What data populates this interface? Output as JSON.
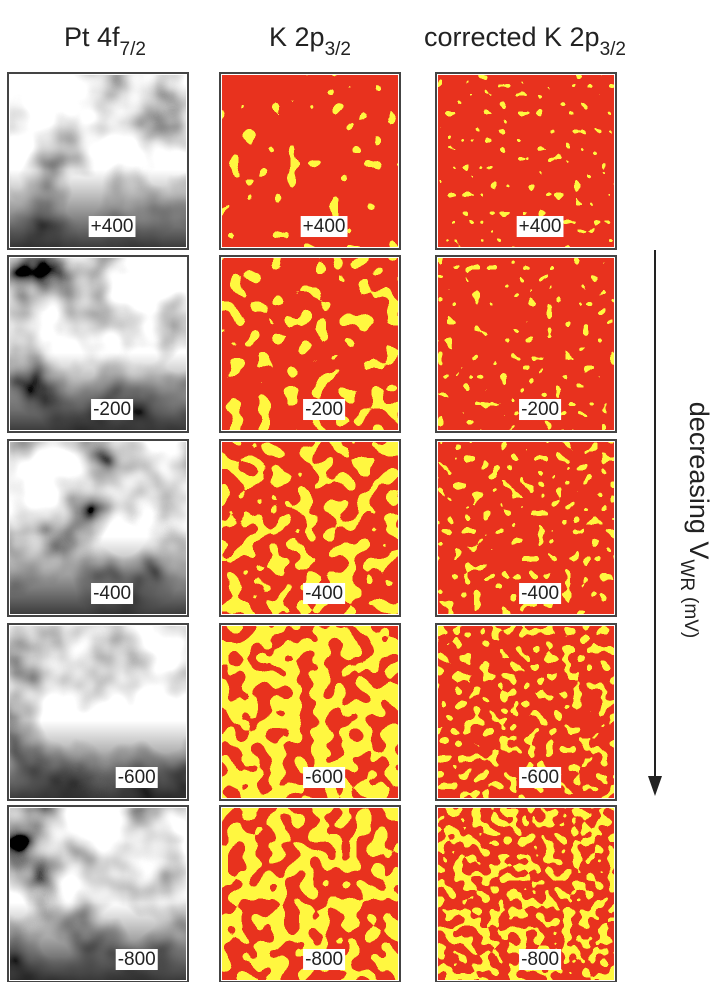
{
  "columns": [
    {
      "title": "Pt 4f",
      "title_sub": "7/2",
      "labels": [
        "+400",
        "-200",
        "-400",
        "-600",
        "-800"
      ]
    },
    {
      "title": "K 2p",
      "title_sub": "3/2",
      "labels": [
        "+400",
        "-200",
        "-400",
        "-600",
        "-800"
      ]
    },
    {
      "title": "corrected K 2p",
      "title_sub": "3/2",
      "labels": [
        "+400",
        "-200",
        "-400",
        "-600",
        "-800"
      ]
    }
  ],
  "side_label": {
    "text": "decreasing V",
    "sub": "WR",
    "unit": "(mV)"
  }
}
